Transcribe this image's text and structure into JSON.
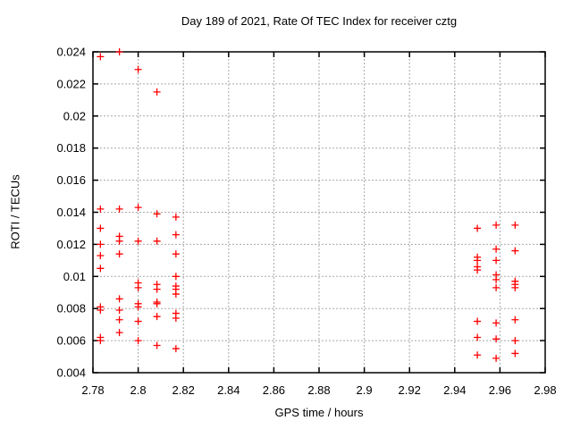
{
  "chart_data": {
    "type": "scatter",
    "title": "Day 189 of 2021, Rate Of TEC Index for receiver cztg",
    "xlabel": "GPS time / hours",
    "ylabel": "ROTI / TECUs",
    "xlim": [
      2.78,
      2.98
    ],
    "ylim": [
      0.004,
      0.024
    ],
    "grid": true,
    "legend": "none",
    "marker": {
      "shape": "plus",
      "color": "#ff0000"
    },
    "xticks": [
      {
        "v": 2.78,
        "label": "2.78"
      },
      {
        "v": 2.8,
        "label": "2.8"
      },
      {
        "v": 2.82,
        "label": "2.82"
      },
      {
        "v": 2.84,
        "label": "2.84"
      },
      {
        "v": 2.86,
        "label": "2.86"
      },
      {
        "v": 2.88,
        "label": "2.88"
      },
      {
        "v": 2.9,
        "label": "2.9"
      },
      {
        "v": 2.92,
        "label": "2.92"
      },
      {
        "v": 2.94,
        "label": "2.94"
      },
      {
        "v": 2.96,
        "label": "2.96"
      },
      {
        "v": 2.98,
        "label": "2.98"
      }
    ],
    "yticks": [
      {
        "v": 0.004,
        "label": "0.004"
      },
      {
        "v": 0.006,
        "label": "0.006"
      },
      {
        "v": 0.008,
        "label": "0.008"
      },
      {
        "v": 0.01,
        "label": "0.01"
      },
      {
        "v": 0.012,
        "label": "0.012"
      },
      {
        "v": 0.014,
        "label": "0.014"
      },
      {
        "v": 0.016,
        "label": "0.016"
      },
      {
        "v": 0.018,
        "label": "0.018"
      },
      {
        "v": 0.02,
        "label": "0.02"
      },
      {
        "v": 0.022,
        "label": "0.022"
      },
      {
        "v": 0.024,
        "label": "0.024"
      }
    ],
    "series": [
      {
        "name": "ROTI",
        "points": [
          [
            2.7833,
            0.0237
          ],
          [
            2.7833,
            0.0142
          ],
          [
            2.7833,
            0.013
          ],
          [
            2.7833,
            0.012
          ],
          [
            2.7833,
            0.0113
          ],
          [
            2.7833,
            0.0105
          ],
          [
            2.7833,
            0.0081
          ],
          [
            2.7833,
            0.0079
          ],
          [
            2.7833,
            0.0062
          ],
          [
            2.7833,
            0.006
          ],
          [
            2.7917,
            0.024
          ],
          [
            2.7917,
            0.0142
          ],
          [
            2.7917,
            0.0125
          ],
          [
            2.7917,
            0.0122
          ],
          [
            2.7917,
            0.0114
          ],
          [
            2.7917,
            0.0086
          ],
          [
            2.7917,
            0.0079
          ],
          [
            2.7917,
            0.0073
          ],
          [
            2.7917,
            0.0065
          ],
          [
            2.8,
            0.0229
          ],
          [
            2.8,
            0.0143
          ],
          [
            2.8,
            0.0122
          ],
          [
            2.8,
            0.0096
          ],
          [
            2.8,
            0.0093
          ],
          [
            2.8,
            0.0083
          ],
          [
            2.8,
            0.0081
          ],
          [
            2.8,
            0.0072
          ],
          [
            2.8,
            0.006
          ],
          [
            2.8083,
            0.0215
          ],
          [
            2.8083,
            0.0139
          ],
          [
            2.8083,
            0.0122
          ],
          [
            2.8083,
            0.0095
          ],
          [
            2.8083,
            0.0092
          ],
          [
            2.8083,
            0.0084
          ],
          [
            2.8083,
            0.0083
          ],
          [
            2.8083,
            0.0075
          ],
          [
            2.8083,
            0.0057
          ],
          [
            2.8167,
            0.0137
          ],
          [
            2.8167,
            0.0126
          ],
          [
            2.8167,
            0.0114
          ],
          [
            2.8167,
            0.01
          ],
          [
            2.8167,
            0.0094
          ],
          [
            2.8167,
            0.0092
          ],
          [
            2.8167,
            0.0089
          ],
          [
            2.8167,
            0.0077
          ],
          [
            2.8167,
            0.0074
          ],
          [
            2.8167,
            0.0055
          ],
          [
            2.95,
            0.013
          ],
          [
            2.95,
            0.0112
          ],
          [
            2.95,
            0.011
          ],
          [
            2.95,
            0.0106
          ],
          [
            2.95,
            0.0104
          ],
          [
            2.95,
            0.0072
          ],
          [
            2.95,
            0.0062
          ],
          [
            2.95,
            0.0051
          ],
          [
            2.9583,
            0.0132
          ],
          [
            2.9583,
            0.0117
          ],
          [
            2.9583,
            0.011
          ],
          [
            2.9583,
            0.0101
          ],
          [
            2.9583,
            0.0098
          ],
          [
            2.9583,
            0.0093
          ],
          [
            2.9583,
            0.0071
          ],
          [
            2.9583,
            0.0061
          ],
          [
            2.9583,
            0.0049
          ],
          [
            2.9667,
            0.0132
          ],
          [
            2.9667,
            0.0116
          ],
          [
            2.9667,
            0.0097
          ],
          [
            2.9667,
            0.0095
          ],
          [
            2.9667,
            0.0093
          ],
          [
            2.9667,
            0.0073
          ],
          [
            2.9667,
            0.006
          ],
          [
            2.9667,
            0.0052
          ]
        ]
      }
    ]
  },
  "colors": {
    "background": "#ffffff",
    "marker": "#ff0000",
    "grid": "#a8a8a8",
    "axis": "#000000",
    "text": "#000000"
  }
}
